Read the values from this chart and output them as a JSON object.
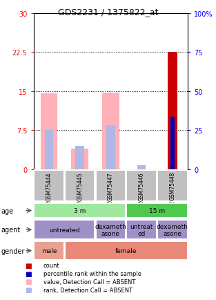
{
  "title": "GDS2231 / 1375822_at",
  "samples": [
    "GSM75444",
    "GSM75445",
    "GSM75447",
    "GSM75446",
    "GSM75448"
  ],
  "bar_values_pink": [
    14.5,
    4.0,
    14.7,
    0.0,
    0.0
  ],
  "bar_values_blue_light": [
    7.5,
    4.5,
    8.5,
    0.7,
    0.0
  ],
  "bar_values_red": [
    0.0,
    0.0,
    0.0,
    0.0,
    22.5
  ],
  "bar_values_blue_dark": [
    0.0,
    0.0,
    0.0,
    0.0,
    10.0
  ],
  "ylim_left": [
    0,
    30
  ],
  "ylim_right": [
    0,
    100
  ],
  "yticks_left": [
    0,
    7.5,
    15,
    22.5,
    30
  ],
  "yticks_right": [
    0,
    25,
    50,
    75,
    100
  ],
  "ytick_labels_left": [
    "0",
    "7.5",
    "15",
    "22.5",
    "30"
  ],
  "ytick_labels_right": [
    "0",
    "25",
    "50",
    "75",
    "100%"
  ],
  "color_pink": "#FFB0B8",
  "color_blue_light": "#B0B8E8",
  "color_red": "#CC0000",
  "color_blue_dark": "#0000BB",
  "color_gray_sample": "#C0C0C0",
  "color_green_3m": "#A0E8A0",
  "color_green_15m": "#50C850",
  "color_purple": "#A090C8",
  "color_salmon_male": "#E8A090",
  "color_salmon_female": "#E88878",
  "age_groups": [
    [
      0,
      3,
      "3 m",
      "#A0E8A0"
    ],
    [
      3,
      5,
      "15 m",
      "#50C850"
    ]
  ],
  "agent_groups": [
    [
      0,
      2,
      "untreated",
      "#A090C8"
    ],
    [
      2,
      3,
      "dexameth\nasone",
      "#A090C8"
    ],
    [
      3,
      4,
      "untreat\ned",
      "#A090C8"
    ],
    [
      4,
      5,
      "dexameth\nasone",
      "#A090C8"
    ]
  ],
  "gender_groups": [
    [
      0,
      1,
      "male",
      "#E8A090"
    ],
    [
      1,
      5,
      "female",
      "#E88878"
    ]
  ],
  "legend_items": [
    {
      "label": "count",
      "color": "#CC0000"
    },
    {
      "label": "percentile rank within the sample",
      "color": "#0000BB"
    },
    {
      "label": "value, Detection Call = ABSENT",
      "color": "#FFB0B8"
    },
    {
      "label": "rank, Detection Call = ABSENT",
      "color": "#B0B8E8"
    }
  ],
  "fig_width": 3.13,
  "fig_height": 4.35,
  "dpi": 100
}
